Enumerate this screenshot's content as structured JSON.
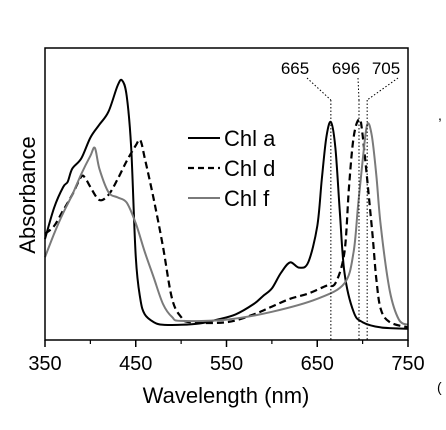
{
  "chart_data": {
    "type": "line",
    "xlabel": "Wavelength (nm)",
    "ylabel": "Absorbance",
    "xlim": [
      350,
      750
    ],
    "x_ticks": [
      350,
      450,
      550,
      650,
      750
    ],
    "y_ticks_labeled": false,
    "grid": false,
    "legend_position": "center",
    "annotations": [
      "665",
      "696",
      "705"
    ],
    "annotation_wavelengths": [
      665,
      696,
      705
    ],
    "series": [
      {
        "name": "Chl a",
        "style": "solid",
        "color": "#000000",
        "points": [
          [
            350,
            0.35
          ],
          [
            360,
            0.47
          ],
          [
            370,
            0.55
          ],
          [
            375,
            0.57
          ],
          [
            380,
            0.62
          ],
          [
            390,
            0.66
          ],
          [
            400,
            0.74
          ],
          [
            410,
            0.79
          ],
          [
            420,
            0.84
          ],
          [
            430,
            0.94
          ],
          [
            435,
            0.96
          ],
          [
            440,
            0.9
          ],
          [
            445,
            0.7
          ],
          [
            450,
            0.28
          ],
          [
            455,
            0.12
          ],
          [
            460,
            0.06
          ],
          [
            470,
            0.03
          ],
          [
            480,
            0.02
          ],
          [
            500,
            0.02
          ],
          [
            520,
            0.025
          ],
          [
            540,
            0.04
          ],
          [
            560,
            0.06
          ],
          [
            580,
            0.1
          ],
          [
            590,
            0.13
          ],
          [
            600,
            0.16
          ],
          [
            610,
            0.22
          ],
          [
            620,
            0.26
          ],
          [
            630,
            0.24
          ],
          [
            640,
            0.26
          ],
          [
            650,
            0.4
          ],
          [
            655,
            0.58
          ],
          [
            660,
            0.74
          ],
          [
            665,
            0.8
          ],
          [
            670,
            0.7
          ],
          [
            675,
            0.45
          ],
          [
            680,
            0.22
          ],
          [
            690,
            0.07
          ],
          [
            700,
            0.03
          ],
          [
            720,
            0.01
          ],
          [
            750,
            0.005
          ]
        ]
      },
      {
        "name": "Chl d",
        "style": "dashed",
        "color": "#000000",
        "points": [
          [
            350,
            0.37
          ],
          [
            360,
            0.4
          ],
          [
            370,
            0.46
          ],
          [
            380,
            0.52
          ],
          [
            390,
            0.59
          ],
          [
            395,
            0.58
          ],
          [
            400,
            0.55
          ],
          [
            410,
            0.5
          ],
          [
            420,
            0.52
          ],
          [
            430,
            0.58
          ],
          [
            440,
            0.65
          ],
          [
            450,
            0.71
          ],
          [
            455,
            0.73
          ],
          [
            460,
            0.66
          ],
          [
            470,
            0.5
          ],
          [
            480,
            0.32
          ],
          [
            490,
            0.12
          ],
          [
            500,
            0.05
          ],
          [
            510,
            0.03
          ],
          [
            550,
            0.03
          ],
          [
            580,
            0.06
          ],
          [
            600,
            0.09
          ],
          [
            620,
            0.12
          ],
          [
            640,
            0.14
          ],
          [
            660,
            0.17
          ],
          [
            670,
            0.18
          ],
          [
            680,
            0.3
          ],
          [
            685,
            0.55
          ],
          [
            690,
            0.74
          ],
          [
            696,
            0.81
          ],
          [
            700,
            0.75
          ],
          [
            710,
            0.4
          ],
          [
            715,
            0.2
          ],
          [
            720,
            0.08
          ],
          [
            730,
            0.03
          ],
          [
            750,
            0.01
          ]
        ]
      },
      {
        "name": "Chl f",
        "style": "solid",
        "color": "#7a7a7a",
        "points": [
          [
            350,
            0.28
          ],
          [
            360,
            0.37
          ],
          [
            370,
            0.45
          ],
          [
            380,
            0.52
          ],
          [
            390,
            0.6
          ],
          [
            400,
            0.67
          ],
          [
            405,
            0.7
          ],
          [
            410,
            0.62
          ],
          [
            420,
            0.53
          ],
          [
            430,
            0.51
          ],
          [
            440,
            0.49
          ],
          [
            450,
            0.41
          ],
          [
            460,
            0.3
          ],
          [
            470,
            0.2
          ],
          [
            480,
            0.1
          ],
          [
            490,
            0.05
          ],
          [
            500,
            0.035
          ],
          [
            550,
            0.04
          ],
          [
            600,
            0.07
          ],
          [
            650,
            0.12
          ],
          [
            680,
            0.18
          ],
          [
            690,
            0.3
          ],
          [
            695,
            0.48
          ],
          [
            700,
            0.65
          ],
          [
            705,
            0.79
          ],
          [
            710,
            0.75
          ],
          [
            715,
            0.6
          ],
          [
            720,
            0.4
          ],
          [
            730,
            0.15
          ],
          [
            740,
            0.04
          ],
          [
            750,
            0.02
          ]
        ]
      }
    ]
  },
  "stray_marks": [
    ",",
    "("
  ]
}
